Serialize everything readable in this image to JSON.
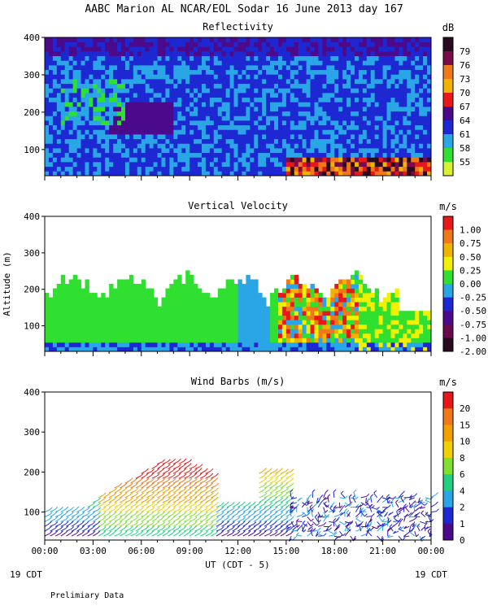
{
  "figure": {
    "title": "AABC Marion AL NCAR/EOL Sodar  16 June 2013 day 167",
    "xlabel": "UT  (CDT - 5)",
    "date_left": "19 CDT",
    "date_right": "19 CDT",
    "footer": "Prelimiary Data"
  },
  "chart_data": [
    {
      "type": "heatmap",
      "title": "Reflectivity",
      "ylabel": "",
      "units": "dB",
      "xlim": [
        0,
        24
      ],
      "ylim": [
        30,
        400
      ],
      "y_ticks": [
        "400",
        "300",
        "200",
        "100"
      ],
      "x_ticks": [
        "00:00",
        "03:00",
        "06:00",
        "09:00",
        "12:00",
        "15:00",
        "18:00",
        "21:00",
        "00:00"
      ],
      "colorbar": {
        "labels": [
          "79",
          "76",
          "73",
          "70",
          "67",
          "64",
          "61",
          "58",
          "55"
        ],
        "colors": [
          "#2a0a1e",
          "#7a0a4a",
          "#f07818",
          "#f0b400",
          "#e81818",
          "#4b0a8c",
          "#1e28d2",
          "#2aa6e6",
          "#30e030",
          "#d8f030"
        ]
      },
      "notes": "Mostly 61-67 dB (blue) aloft; 70-79 dB near surface after 15 UT"
    },
    {
      "type": "heatmap",
      "title": "Vertical Velocity",
      "ylabel": "Altitude (m)",
      "units": "m/s",
      "xlim": [
        0,
        24
      ],
      "ylim": [
        30,
        400
      ],
      "y_ticks": [
        "400",
        "300",
        "200",
        "100"
      ],
      "colorbar": {
        "labels": [
          "1.00",
          "0.75",
          "0.50",
          "0.25",
          "0.00",
          "-0.25",
          "-0.50",
          "-0.75",
          "-1.00",
          "-2.00"
        ],
        "colors": [
          "#e81818",
          "#f07818",
          "#f0b400",
          "#f0f000",
          "#30e030",
          "#2aa6e6",
          "#1e28d2",
          "#4b0a8c",
          "#6a0a4a",
          "#2a0a1e"
        ]
      },
      "notes": "Near 0 m/s most of day, positive 0.5-1.0 m/s 15-19 UT"
    },
    {
      "type": "scatter",
      "title": "Wind Barbs (m/s)",
      "ylabel": "",
      "units": "m/s",
      "xlim": [
        0,
        24
      ],
      "ylim": [
        30,
        400
      ],
      "y_ticks": [
        "400",
        "300",
        "200",
        "100"
      ],
      "colorbar": {
        "labels": [
          "20",
          "15",
          "10",
          "8",
          "6",
          "4",
          "2",
          "1",
          "0"
        ],
        "colors": [
          "#e81818",
          "#f07818",
          "#f0a000",
          "#f0d000",
          "#80e030",
          "#20d080",
          "#2aa6e6",
          "#1e28d2",
          "#4b0a8c"
        ]
      },
      "notes": "Winds 6-10 m/s aloft 05-10 UT, weak near surface"
    }
  ]
}
